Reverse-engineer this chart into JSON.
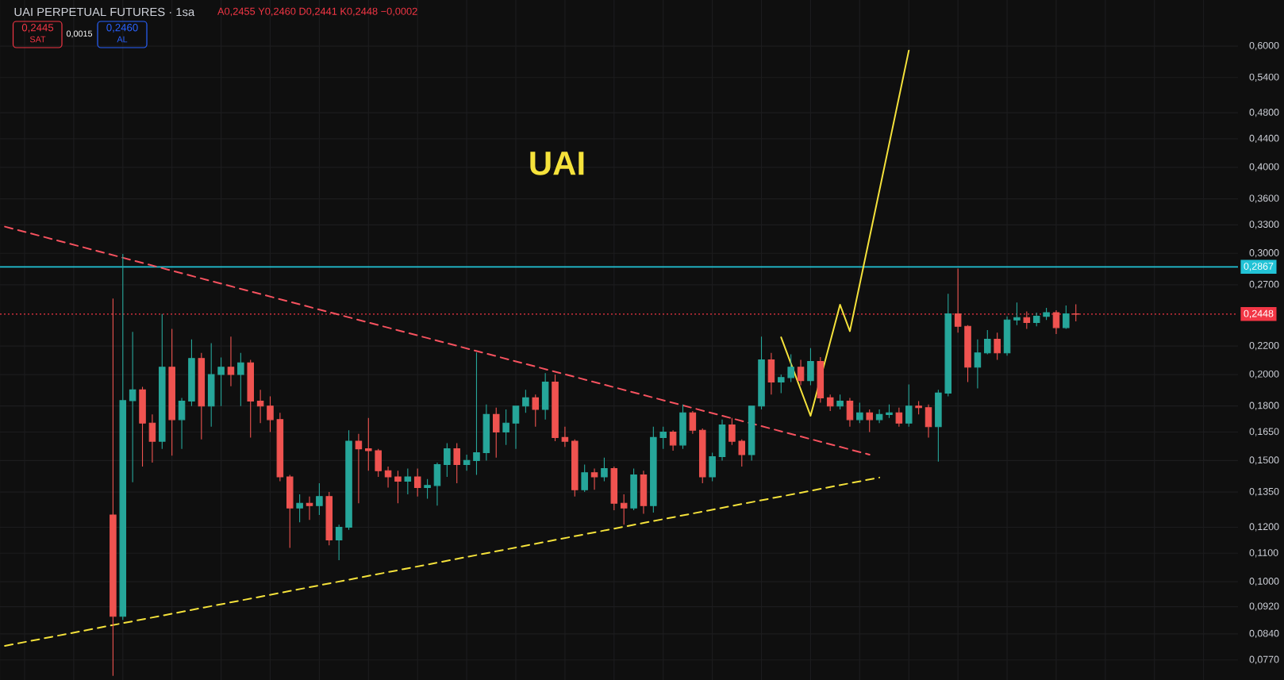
{
  "chart_data": {
    "type": "candlestick",
    "title": "UAI PERPETUAL FUTURES · 1sa",
    "subtitle": "A0,2455 Y0,2460 D0,2441 K0,2448 −0,0002",
    "annotations": [
      "UAI",
      "0,2445",
      "SAT",
      "0,0015",
      "0,2460",
      "AL"
    ],
    "categories": [
      null,
      null,
      null,
      null,
      null,
      null,
      null,
      null,
      null,
      null,
      null,
      null,
      null,
      null,
      null,
      null,
      null,
      null,
      null,
      null,
      null,
      null,
      null,
      null,
      null,
      null,
      null,
      null,
      null,
      null,
      null,
      null,
      null,
      null,
      null,
      null,
      null,
      null,
      null,
      null,
      null,
      null,
      null,
      null,
      null,
      null,
      null,
      null,
      null,
      null,
      null,
      null,
      null,
      null,
      null,
      null,
      null,
      null,
      null,
      null,
      null,
      null,
      null,
      null,
      null,
      null,
      null,
      null,
      null,
      null,
      null,
      null,
      null,
      null,
      null,
      null,
      null,
      null,
      null,
      null,
      null,
      null,
      null,
      null,
      null,
      null,
      null,
      null,
      null,
      null,
      null,
      null,
      null,
      null,
      null,
      null,
      null,
      null,
      null,
      null,
      null,
      null,
      null,
      null,
      null,
      null,
      null,
      null,
      null,
      null,
      null,
      null,
      null,
      null,
      null,
      null,
      null,
      null,
      null,
      null,
      null,
      null,
      null,
      null,
      null,
      null
    ],
    "ohlc": [
      null,
      null,
      null,
      null,
      null,
      null,
      null,
      null,
      null,
      null,
      null,
      [
        0.125,
        0.2579,
        0.073,
        0.0891
      ],
      [
        0.0891,
        0.2993,
        0.088,
        0.1833
      ],
      [
        0.1833,
        0.2307,
        0.1395,
        0.19
      ],
      [
        0.19,
        0.192,
        0.147,
        0.17
      ],
      [
        0.17,
        0.175,
        0.149,
        0.16
      ],
      [
        0.16,
        0.2448,
        0.156,
        0.205
      ],
      [
        0.205,
        0.233,
        0.1525,
        0.172
      ],
      [
        0.172,
        0.185,
        0.156,
        0.183
      ],
      [
        0.183,
        0.225,
        0.18,
        0.211
      ],
      [
        0.211,
        0.215,
        0.161,
        0.18
      ],
      [
        0.18,
        0.2221,
        0.168,
        0.2
      ],
      [
        0.2,
        0.2117,
        0.18,
        0.205
      ],
      [
        0.205,
        0.227,
        0.1923,
        0.2
      ],
      [
        0.2,
        0.215,
        0.18,
        0.208
      ],
      [
        0.208,
        0.21,
        0.162,
        0.183
      ],
      [
        0.183,
        0.19,
        0.17,
        0.18
      ],
      [
        0.18,
        0.186,
        0.165,
        0.172
      ],
      [
        0.172,
        0.176,
        0.14,
        0.142
      ],
      [
        0.142,
        0.143,
        0.112,
        0.128
      ],
      [
        0.128,
        0.134,
        0.122,
        0.13
      ],
      [
        0.13,
        0.133,
        0.123,
        0.129
      ],
      [
        0.129,
        0.139,
        0.125,
        0.133
      ],
      [
        0.133,
        0.135,
        0.113,
        0.115
      ],
      [
        0.115,
        0.121,
        0.1075,
        0.12
      ],
      [
        0.12,
        0.166,
        0.119,
        0.16
      ],
      [
        0.16,
        0.164,
        0.13,
        0.156
      ],
      [
        0.156,
        0.173,
        0.145,
        0.155
      ],
      [
        0.155,
        0.156,
        0.142,
        0.145
      ],
      [
        0.145,
        0.147,
        0.137,
        0.142
      ],
      [
        0.142,
        0.145,
        0.13,
        0.14
      ],
      [
        0.14,
        0.146,
        0.134,
        0.142
      ],
      [
        0.142,
        0.146,
        0.133,
        0.137
      ],
      [
        0.137,
        0.141,
        0.132,
        0.138
      ],
      [
        0.138,
        0.149,
        0.129,
        0.148
      ],
      [
        0.148,
        0.159,
        0.142,
        0.156
      ],
      [
        0.156,
        0.159,
        0.139,
        0.148
      ],
      [
        0.148,
        0.153,
        0.145,
        0.15
      ],
      [
        0.15,
        0.2153,
        0.143,
        0.154
      ],
      [
        0.154,
        0.181,
        0.15,
        0.175
      ],
      [
        0.175,
        0.179,
        0.1515,
        0.165
      ],
      [
        0.165,
        0.178,
        0.158,
        0.17
      ],
      [
        0.17,
        0.18,
        0.156,
        0.18
      ],
      [
        0.18,
        0.19,
        0.176,
        0.185
      ],
      [
        0.185,
        0.187,
        0.168,
        0.178
      ],
      [
        0.178,
        0.201,
        0.172,
        0.195
      ],
      [
        0.195,
        0.2,
        0.16,
        0.162
      ],
      [
        0.162,
        0.168,
        0.157,
        0.16
      ],
      [
        0.16,
        0.161,
        0.133,
        0.136
      ],
      [
        0.136,
        0.148,
        0.135,
        0.144
      ],
      [
        0.144,
        0.146,
        0.136,
        0.142
      ],
      [
        0.142,
        0.1515,
        0.14,
        0.146
      ],
      [
        0.146,
        0.147,
        0.127,
        0.13
      ],
      [
        0.13,
        0.134,
        0.121,
        0.128
      ],
      [
        0.128,
        0.146,
        0.127,
        0.143
      ],
      [
        0.143,
        0.145,
        0.1255,
        0.129
      ],
      [
        0.129,
        0.168,
        0.126,
        0.162
      ],
      [
        0.162,
        0.168,
        0.156,
        0.165
      ],
      [
        0.165,
        0.166,
        0.155,
        0.158
      ],
      [
        0.158,
        0.181,
        0.156,
        0.176
      ],
      [
        0.176,
        0.177,
        0.164,
        0.166
      ],
      [
        0.166,
        0.167,
        0.139,
        0.142
      ],
      [
        0.142,
        0.154,
        0.14,
        0.152
      ],
      [
        0.152,
        0.172,
        0.15,
        0.169
      ],
      [
        0.169,
        0.173,
        0.158,
        0.16
      ],
      [
        0.16,
        0.161,
        0.147,
        0.153
      ],
      [
        0.153,
        0.18,
        0.15,
        0.18
      ],
      [
        0.18,
        0.227,
        0.178,
        0.21
      ],
      [
        0.21,
        0.215,
        0.187,
        0.195
      ],
      [
        0.195,
        0.2,
        0.188,
        0.198
      ],
      [
        0.198,
        0.214,
        0.195,
        0.205
      ],
      [
        0.205,
        0.21,
        0.193,
        0.196
      ],
      [
        0.196,
        0.2185,
        0.193,
        0.209
      ],
      [
        0.209,
        0.212,
        0.182,
        0.185
      ],
      [
        0.185,
        0.187,
        0.177,
        0.18
      ],
      [
        0.18,
        0.187,
        0.178,
        0.183
      ],
      [
        0.183,
        0.185,
        0.168,
        0.172
      ],
      [
        0.172,
        0.182,
        0.17,
        0.176
      ],
      [
        0.176,
        0.178,
        0.165,
        0.172
      ],
      [
        0.172,
        0.178,
        0.17,
        0.175
      ],
      [
        0.175,
        0.181,
        0.173,
        0.176
      ],
      [
        0.176,
        0.179,
        0.168,
        0.17
      ],
      [
        0.17,
        0.1935,
        0.168,
        0.18
      ],
      [
        0.18,
        0.183,
        0.175,
        0.179
      ],
      [
        0.179,
        0.181,
        0.162,
        0.168
      ],
      [
        0.168,
        0.19,
        0.1495,
        0.188
      ],
      [
        0.188,
        0.262,
        0.186,
        0.245
      ],
      [
        0.245,
        0.285,
        0.23,
        0.235
      ],
      [
        0.235,
        0.236,
        0.195,
        0.205
      ],
      [
        0.205,
        0.225,
        0.191,
        0.215
      ],
      [
        0.215,
        0.232,
        0.214,
        0.225
      ],
      [
        0.225,
        0.23,
        0.21,
        0.215
      ],
      [
        0.215,
        0.243,
        0.213,
        0.24
      ],
      [
        0.24,
        0.2545,
        0.236,
        0.242
      ],
      [
        0.242,
        0.247,
        0.233,
        0.238
      ],
      [
        0.238,
        0.246,
        0.235,
        0.243
      ],
      [
        0.243,
        0.25,
        0.24,
        0.246
      ],
      [
        0.246,
        0.248,
        0.229,
        0.234
      ],
      [
        0.234,
        0.252,
        0.233,
        0.245
      ],
      [
        0.245,
        0.253,
        0.239,
        0.2448
      ],
      null,
      null,
      null,
      null,
      null,
      null,
      null,
      null,
      null,
      null,
      null,
      null,
      null,
      null,
      null,
      null
    ],
    "colors": [
      null,
      null,
      null,
      null,
      null,
      null,
      null,
      null,
      null,
      null,
      null,
      "#ef5350",
      "#26a69a",
      "#26a69a",
      "#ef5350",
      "#ef5350",
      "#26a69a",
      "#ef5350",
      "#26a69a",
      "#26a69a",
      "#ef5350",
      "#26a69a",
      "#26a69a",
      "#ef5350",
      "#26a69a",
      "#ef5350",
      "#ef5350",
      "#ef5350",
      "#ef5350",
      "#ef5350",
      "#26a69a",
      "#ef5350",
      "#26a69a",
      "#ef5350",
      "#26a69a",
      "#26a69a",
      "#ef5350",
      "#ef5350",
      "#ef5350",
      "#ef5350",
      "#ef5350",
      "#26a69a",
      "#ef5350",
      "#26a69a",
      "#26a69a",
      "#26a69a",
      "#ef5350",
      "#26a69a",
      "#26a69a",
      "#26a69a",
      "#ef5350",
      "#26a69a",
      "#26a69a",
      "#26a69a",
      "#ef5350",
      "#26a69a",
      "#ef5350",
      "#ef5350",
      "#ef5350",
      "#26a69a",
      "#ef5350",
      "#26a69a",
      "#ef5350",
      "#ef5350",
      "#26a69a",
      "#ef5350",
      "#26a69a",
      "#26a69a",
      "#ef5350",
      "#26a69a",
      "#ef5350",
      "#ef5350",
      "#26a69a",
      "#26a69a",
      "#ef5350",
      "#ef5350",
      "#26a69a",
      "#26a69a",
      "#ef5350",
      "#26a69a",
      "#26a69a",
      "#ef5350",
      "#26a69a",
      "#ef5350",
      "#ef5350",
      "#26a69a",
      "#ef5350",
      "#26a69a",
      "#ef5350",
      "#26a69a",
      "#26a69a",
      "#ef5350",
      "#26a69a",
      "#ef5350",
      "#ef5350",
      "#26a69a",
      "#26a69a",
      "#ef5350",
      "#ef5350",
      "#26a69a",
      "#26a69a",
      "#ef5350",
      "#26a69a",
      "#26a69a",
      "#ef5350",
      "#26a69a",
      "#26a69a",
      "#ef5350",
      "#26a69a",
      "#ef5350",
      null,
      null,
      null,
      null,
      null,
      null,
      null,
      null,
      null,
      null,
      null,
      null,
      null,
      null,
      null,
      null
    ],
    "series": [
      {
        "type": "line",
        "color": "#f7525f",
        "line_style": "dashed",
        "values": [
          0.328,
          null,
          null,
          null,
          null,
          null,
          null,
          null,
          null,
          null,
          null,
          null,
          null,
          null,
          null,
          null,
          null,
          null,
          null,
          null,
          null,
          null,
          null,
          null,
          null,
          null,
          null,
          null,
          null,
          null,
          null,
          null,
          null,
          null,
          null,
          null,
          null,
          null,
          null,
          null,
          null,
          null,
          null,
          null,
          null,
          null,
          null,
          null,
          null,
          null,
          null,
          null,
          null,
          null,
          null,
          null,
          null,
          null,
          null,
          null,
          null,
          null,
          null,
          null,
          null,
          null,
          null,
          null,
          null,
          null,
          null,
          null,
          null,
          null,
          null,
          null,
          null,
          null,
          null,
          null,
          null,
          null,
          null,
          null,
          null,
          null,
          null,
          null,
          0.153,
          null,
          null,
          null,
          null,
          null,
          null,
          null,
          null,
          null,
          null,
          null,
          null,
          null,
          null,
          null,
          null,
          null,
          null,
          null,
          null,
          null,
          null,
          null,
          null,
          null,
          null,
          null,
          null,
          null,
          null,
          null,
          null,
          null,
          null,
          null,
          null,
          null
        ]
      },
      {
        "type": "line",
        "color": "#f5e23b",
        "line_style": "dashed",
        "values": [
          0.0807,
          null,
          null,
          null,
          null,
          null,
          null,
          null,
          null,
          null,
          null,
          null,
          null,
          null,
          null,
          null,
          null,
          null,
          null,
          null,
          null,
          null,
          null,
          null,
          null,
          null,
          null,
          null,
          null,
          null,
          null,
          null,
          null,
          null,
          null,
          null,
          null,
          null,
          null,
          null,
          null,
          null,
          null,
          null,
          null,
          null,
          null,
          null,
          null,
          null,
          null,
          null,
          null,
          null,
          null,
          null,
          null,
          null,
          null,
          null,
          null,
          null,
          null,
          null,
          null,
          null,
          null,
          null,
          null,
          null,
          null,
          null,
          null,
          null,
          null,
          null,
          null,
          null,
          null,
          null,
          null,
          null,
          null,
          null,
          null,
          null,
          null,
          null,
          null,
          0.1417,
          null,
          null,
          null,
          null,
          null,
          null,
          null,
          null,
          null,
          null,
          null,
          null,
          null,
          null,
          null,
          null,
          null,
          null,
          null,
          null,
          null,
          null,
          null,
          null,
          null,
          null,
          null,
          null,
          null,
          null,
          null,
          null,
          null,
          null,
          null,
          null
        ]
      },
      {
        "type": "line",
        "color": "#f5e23b",
        "line_style": "solid",
        "values": [
          null,
          null,
          null,
          null,
          null,
          null,
          null,
          null,
          null,
          null,
          null,
          null,
          null,
          null,
          null,
          null,
          null,
          null,
          null,
          null,
          null,
          null,
          null,
          null,
          null,
          null,
          null,
          null,
          null,
          null,
          null,
          null,
          null,
          null,
          null,
          null,
          null,
          null,
          null,
          null,
          null,
          null,
          null,
          null,
          null,
          null,
          null,
          null,
          null,
          null,
          null,
          null,
          null,
          null,
          null,
          null,
          null,
          null,
          null,
          null,
          null,
          null,
          null,
          null,
          null,
          null,
          null,
          null,
          null,
          null,
          null,
          null,
          null,
          null,
          null,
          null,
          null,
          null,
          null,
          0.2265,
          null,
          null,
          0.1742,
          null,
          null,
          0.2526,
          0.2312,
          null,
          null,
          null,
          null,
          null,
          0.5912,
          null,
          null,
          null,
          null,
          null,
          null,
          null,
          null,
          null,
          null,
          null,
          null,
          null,
          null,
          null,
          null,
          null,
          null,
          null,
          null,
          null,
          null,
          null,
          null,
          null,
          null,
          null,
          null,
          null,
          null,
          null,
          null,
          null
        ]
      }
    ],
    "ref_lines": [
      {
        "axis": "y",
        "value": 0.2867,
        "label": "0,2867",
        "color": "#22c3d6",
        "line_style": "solid"
      },
      {
        "axis": "y",
        "value": 0.2448,
        "label": "0,2448",
        "color": "#f23645",
        "line_style": "dotted"
      }
    ],
    "ylim": [
      0.072,
      0.7
    ],
    "yticks": [
      {
        "value": 0.077,
        "label": "0,0770"
      },
      {
        "value": 0.084,
        "label": "0,0840"
      },
      {
        "value": 0.092,
        "label": "0,0920"
      },
      {
        "value": 0.1,
        "label": "0,1000"
      },
      {
        "value": 0.11,
        "label": "0,1100"
      },
      {
        "value": 0.12,
        "label": "0,1200"
      },
      {
        "value": 0.135,
        "label": "0,1350"
      },
      {
        "value": 0.15,
        "label": "0,1500"
      },
      {
        "value": 0.165,
        "label": "0,1650"
      },
      {
        "value": 0.18,
        "label": "0,1800"
      },
      {
        "value": 0.2,
        "label": "0,2000"
      },
      {
        "value": 0.22,
        "label": "0,2200"
      },
      {
        "value": 0.27,
        "label": "0,2700"
      },
      {
        "value": 0.3,
        "label": "0,3000"
      },
      {
        "value": 0.33,
        "label": "0,3300"
      },
      {
        "value": 0.36,
        "label": "0,3600"
      },
      {
        "value": 0.4,
        "label": "0,4000"
      },
      {
        "value": 0.44,
        "label": "0,4400"
      },
      {
        "value": 0.48,
        "label": "0,4800"
      },
      {
        "value": 0.54,
        "label": "0,5400"
      },
      {
        "value": 0.6,
        "label": "0,6000"
      }
    ],
    "log": "y",
    "grid": true
  }
}
